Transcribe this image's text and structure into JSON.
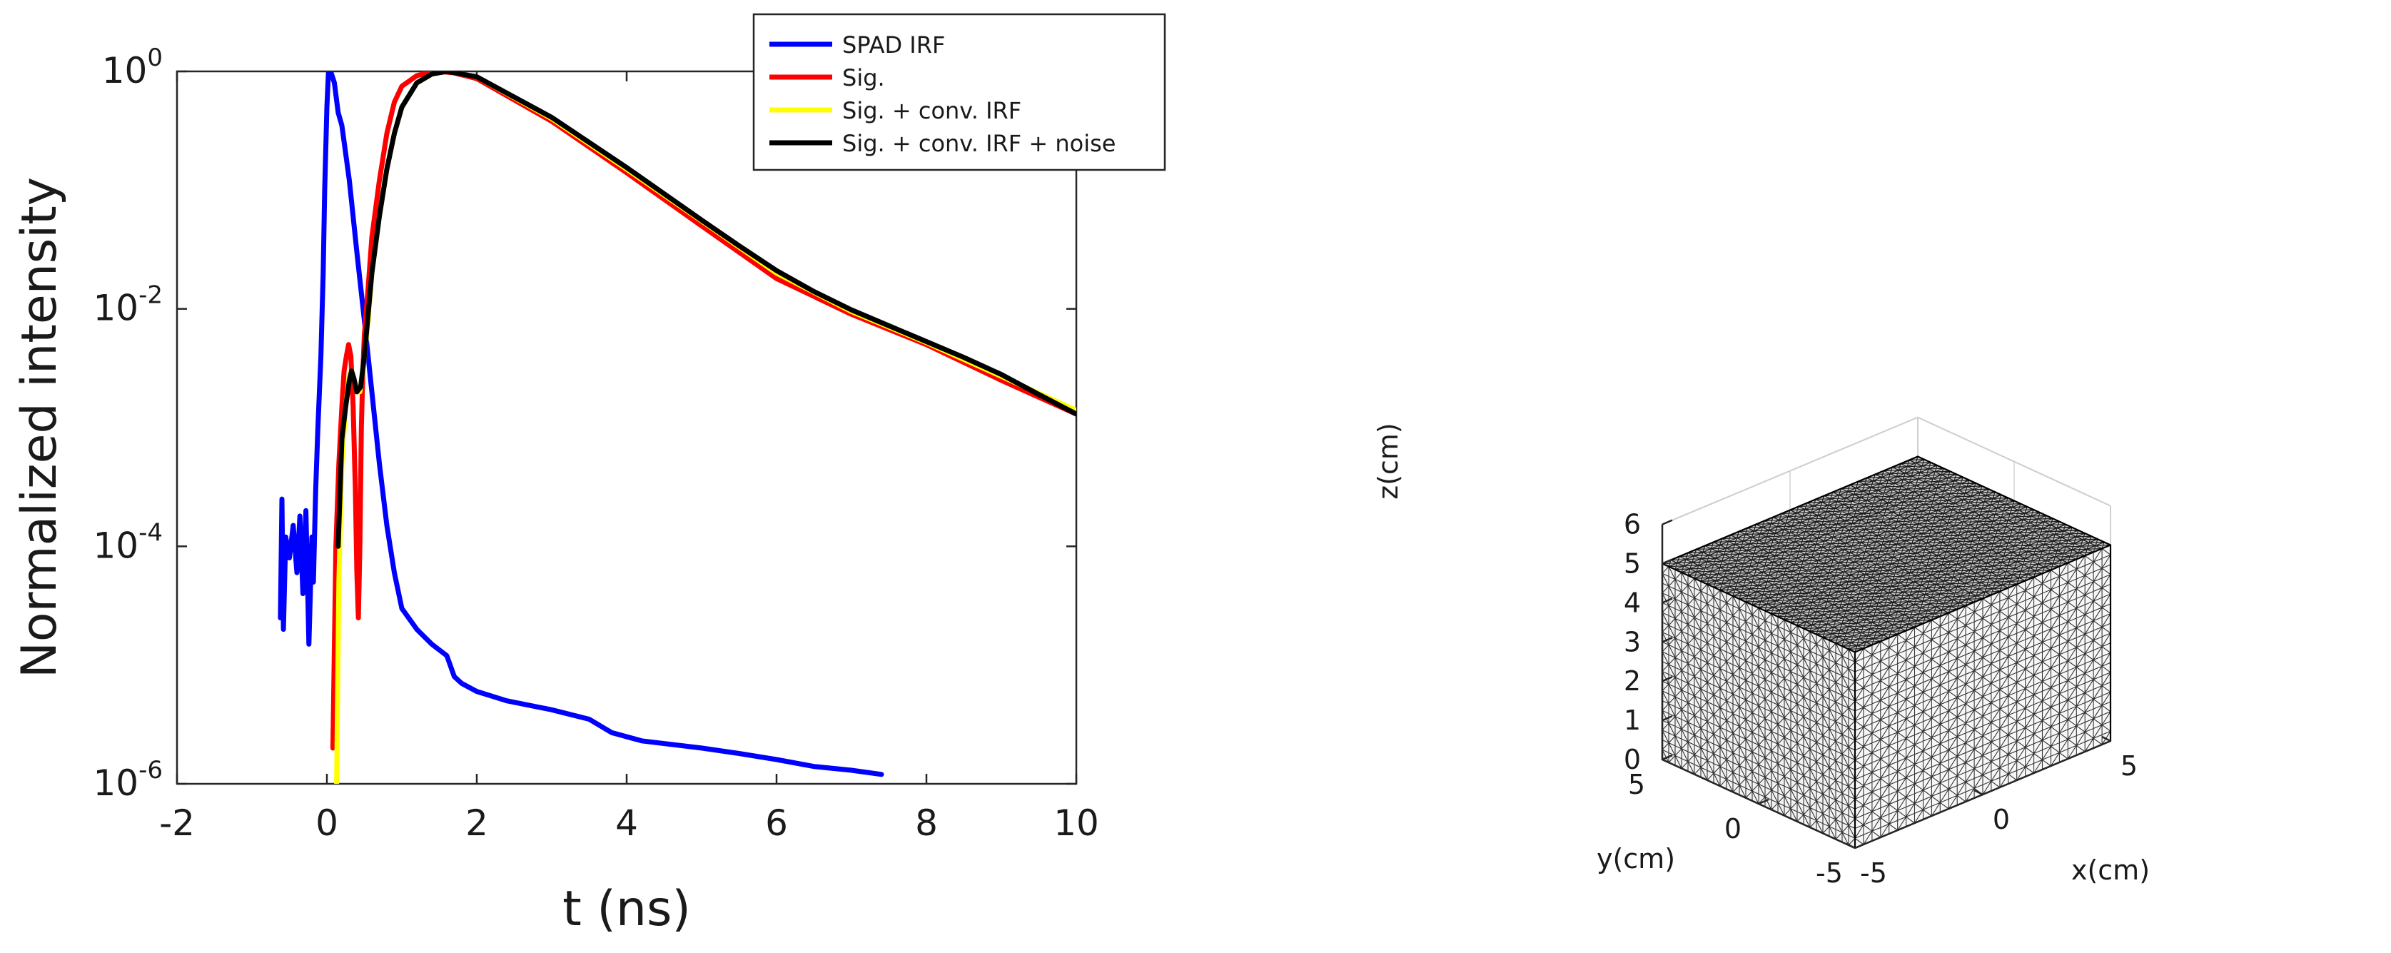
{
  "chart_data": [
    {
      "type": "line",
      "yscale": "log",
      "xlabel": "t (ns)",
      "ylabel": "Normalized intensity",
      "xlim": [
        -2,
        10
      ],
      "ylim": [
        1e-06,
        1
      ],
      "xticks": [
        -2,
        0,
        2,
        4,
        6,
        8,
        10
      ],
      "xtick_labels": [
        "-2",
        "0",
        "2",
        "4",
        "6",
        "8",
        "10"
      ],
      "yticks": [
        1e-06,
        0.0001,
        0.01,
        1
      ],
      "ytick_labels": [
        {
          "base": "10",
          "exp": "-6"
        },
        {
          "base": "10",
          "exp": "-4"
        },
        {
          "base": "10",
          "exp": "-2"
        },
        {
          "base": "10",
          "exp": "0"
        }
      ],
      "legend_position": "top-right",
      "series": [
        {
          "name": "SPAD IRF",
          "color": "#0000ff",
          "x": [
            -0.62,
            -0.6,
            -0.58,
            -0.55,
            -0.5,
            -0.45,
            -0.4,
            -0.36,
            -0.32,
            -0.28,
            -0.24,
            -0.2,
            -0.18,
            -0.15,
            -0.12,
            -0.08,
            -0.05,
            -0.03,
            0.0,
            0.02,
            0.05,
            0.1,
            0.15,
            0.2,
            0.3,
            0.4,
            0.5,
            0.6,
            0.7,
            0.8,
            0.9,
            1.0,
            1.2,
            1.4,
            1.6,
            1.7,
            1.8,
            2.0,
            2.4,
            3.0,
            3.5,
            3.8,
            4.2,
            5.0,
            5.5,
            6.0,
            6.5,
            7.0,
            7.4
          ],
          "y": [
            2.5e-05,
            0.00025,
            2e-05,
            0.00012,
            8e-05,
            0.00015,
            6e-05,
            0.00018,
            4e-05,
            0.0002,
            1.5e-05,
            0.00012,
            5e-05,
            0.0003,
            0.001,
            0.004,
            0.02,
            0.1,
            0.5,
            0.95,
            1.0,
            0.8,
            0.45,
            0.35,
            0.12,
            0.03,
            0.008,
            0.002,
            0.0005,
            0.00015,
            6e-05,
            3e-05,
            2e-05,
            1.5e-05,
            1.2e-05,
            8e-06,
            7e-06,
            6e-06,
            5e-06,
            4.2e-06,
            3.5e-06,
            2.7e-06,
            2.3e-06,
            2e-06,
            1.8e-06,
            1.6e-06,
            1.4e-06,
            1.3e-06,
            1.2e-06
          ]
        },
        {
          "name": "Sig.",
          "color": "#ff0000",
          "x": [
            0.08,
            0.12,
            0.16,
            0.2,
            0.23,
            0.26,
            0.29,
            0.32,
            0.35,
            0.38,
            0.4,
            0.42,
            0.44,
            0.46,
            0.48,
            0.5,
            0.55,
            0.6,
            0.7,
            0.8,
            0.9,
            1.0,
            1.2,
            1.4,
            1.5,
            1.7,
            2.0,
            3.0,
            4.0,
            5.0,
            6.0,
            7.0,
            8.0,
            9.0,
            10.0
          ],
          "y": [
            2e-06,
            0.0001,
            0.0005,
            0.0015,
            0.003,
            0.004,
            0.005,
            0.004,
            0.0015,
            0.0003,
            6e-05,
            2.5e-05,
            0.0001,
            0.001,
            0.003,
            0.006,
            0.015,
            0.04,
            0.12,
            0.3,
            0.55,
            0.75,
            0.92,
            0.99,
            1.0,
            0.97,
            0.87,
            0.38,
            0.14,
            0.05,
            0.018,
            0.009,
            0.005,
            0.0025,
            0.0013
          ]
        },
        {
          "name": "Sig. + conv. IRF",
          "color": "#ffff00",
          "x": [
            0.13,
            0.16,
            0.2,
            0.25,
            0.3,
            0.33,
            0.36,
            0.4,
            0.44,
            0.48,
            0.55,
            0.6,
            0.7,
            0.8,
            0.9,
            1.0,
            1.2,
            1.4,
            1.6,
            2.0,
            3.0,
            4.0,
            5.0,
            6.0,
            7.0,
            8.0,
            9.0,
            10.0
          ],
          "y": [
            1e-06,
            5e-05,
            0.0005,
            0.0015,
            0.0028,
            0.003,
            0.0026,
            0.002,
            0.002,
            0.003,
            0.008,
            0.02,
            0.06,
            0.15,
            0.3,
            0.5,
            0.8,
            0.95,
            1.0,
            0.9,
            0.4,
            0.15,
            0.055,
            0.02,
            0.0095,
            0.0052,
            0.0027,
            0.0014
          ]
        },
        {
          "name": "Sig. + conv. IRF + noise",
          "color": "#000000",
          "x": [
            0.15,
            0.2,
            0.25,
            0.3,
            0.33,
            0.36,
            0.4,
            0.45,
            0.5,
            0.6,
            0.7,
            0.8,
            0.9,
            1.0,
            1.2,
            1.4,
            1.6,
            2.0,
            3.0,
            4.0,
            5.0,
            5.5,
            6.0,
            6.5,
            7.0,
            7.5,
            8.0,
            8.5,
            9.0,
            9.5,
            10.0
          ],
          "y": [
            0.0001,
            0.0008,
            0.0015,
            0.0025,
            0.003,
            0.0026,
            0.002,
            0.0022,
            0.004,
            0.02,
            0.06,
            0.15,
            0.3,
            0.5,
            0.8,
            0.95,
            1.0,
            0.9,
            0.41,
            0.155,
            0.056,
            0.034,
            0.021,
            0.014,
            0.0098,
            0.0072,
            0.0053,
            0.0039,
            0.0028,
            0.0019,
            0.0013
          ]
        }
      ]
    },
    {
      "type": "mesh3d",
      "title": "",
      "xlabel": "x(cm)",
      "ylabel": "y(cm)",
      "zlabel": "z(cm)",
      "xlim": [
        -5,
        5
      ],
      "ylim": [
        -5,
        5
      ],
      "zlim": [
        0,
        6
      ],
      "xticks": [
        -5,
        0,
        5
      ],
      "yticks": [
        -5,
        0,
        5
      ],
      "zticks": [
        0,
        1,
        2,
        3,
        4,
        5,
        6
      ],
      "xtick_labels": [
        "-5",
        "0",
        "5"
      ],
      "ytick_labels": [
        "-5",
        "0",
        "5"
      ],
      "ztick_labels": [
        "0",
        "1",
        "2",
        "3",
        "4",
        "5",
        "6"
      ],
      "box": {
        "x": [
          -5,
          5
        ],
        "y": [
          -5,
          5
        ],
        "z": [
          0,
          5
        ]
      },
      "mesh": "tetrahedral",
      "mesh_color": "#000000",
      "face_color": "#ffffff",
      "grid": true
    }
  ]
}
